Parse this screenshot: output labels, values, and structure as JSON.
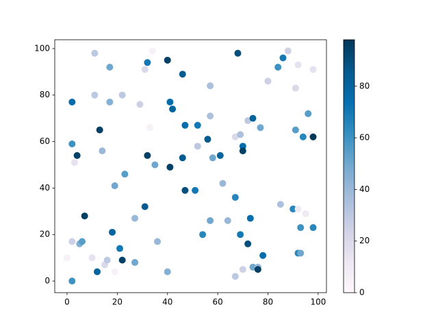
{
  "chart_data": {
    "type": "scatter",
    "x": [
      0,
      2,
      2,
      2,
      2,
      3,
      4,
      5,
      6,
      7,
      10,
      11,
      11,
      12,
      13,
      14,
      15,
      16,
      17,
      17,
      18,
      19,
      19,
      21,
      22,
      22,
      23,
      27,
      27,
      29,
      31,
      31,
      32,
      32,
      33,
      34,
      35,
      36,
      40,
      40,
      41,
      41,
      42,
      46,
      46,
      47,
      47,
      51,
      52,
      52,
      54,
      56,
      57,
      57,
      57,
      58,
      61,
      62,
      64,
      67,
      67,
      67,
      68,
      69,
      69,
      70,
      70,
      70,
      72,
      72,
      73,
      74,
      74,
      76,
      76,
      77,
      78,
      80,
      84,
      85,
      86,
      88,
      90,
      91,
      91,
      92,
      92,
      92,
      93,
      93,
      94,
      95,
      96,
      97,
      98,
      98,
      98
    ],
    "y": [
      10,
      0,
      17,
      59,
      77,
      51,
      54,
      16,
      17,
      28,
      10,
      98,
      80,
      4,
      65,
      56,
      7,
      9,
      92,
      77,
      21,
      4,
      41,
      14,
      80,
      9,
      46,
      27,
      8,
      76,
      91,
      32,
      94,
      54,
      66,
      99,
      50,
      17,
      95,
      4,
      77,
      49,
      74,
      89,
      53,
      67,
      39,
      39,
      67,
      58,
      20,
      61,
      84,
      71,
      26,
      53,
      54,
      42,
      26,
      62,
      36,
      2,
      98,
      63,
      20,
      5,
      58,
      56,
      69,
      16,
      27,
      70,
      6,
      6,
      5,
      66,
      11,
      86,
      92,
      33,
      96,
      99,
      31,
      83,
      65,
      93,
      31,
      12,
      23,
      12,
      62,
      29,
      72,
      63,
      91,
      62,
      23
    ],
    "c": [
      5,
      60,
      25,
      60,
      75,
      15,
      95,
      45,
      55,
      95,
      15,
      30,
      30,
      80,
      95,
      40,
      20,
      30,
      50,
      45,
      80,
      5,
      50,
      70,
      30,
      95,
      55,
      40,
      50,
      25,
      20,
      85,
      70,
      95,
      5,
      5,
      50,
      40,
      95,
      45,
      75,
      95,
      80,
      85,
      85,
      75,
      90,
      70,
      70,
      30,
      65,
      85,
      35,
      35,
      50,
      50,
      80,
      40,
      40,
      20,
      65,
      30,
      90,
      35,
      70,
      25,
      75,
      95,
      30,
      90,
      75,
      80,
      50,
      40,
      95,
      50,
      75,
      25,
      60,
      35,
      70,
      25,
      65,
      20,
      55,
      15,
      10,
      65,
      60,
      50,
      65,
      10,
      55,
      5,
      15,
      98,
      65
    ],
    "colormap": [
      "#fff7fb",
      "#ece7f2",
      "#d0d1e6",
      "#a6bddb",
      "#74a9cf",
      "#3690c0",
      "#0570b0",
      "#045a8d",
      "#023858"
    ],
    "xlim": [
      -4.9,
      103.3
    ],
    "ylim": [
      -5,
      103.8
    ],
    "clim": [
      0,
      98
    ],
    "xticks": [
      0,
      20,
      40,
      60,
      80,
      100
    ],
    "yticks": [
      0,
      20,
      40,
      60,
      80,
      100
    ],
    "cticks": [
      0,
      20,
      40,
      60,
      80
    ]
  }
}
